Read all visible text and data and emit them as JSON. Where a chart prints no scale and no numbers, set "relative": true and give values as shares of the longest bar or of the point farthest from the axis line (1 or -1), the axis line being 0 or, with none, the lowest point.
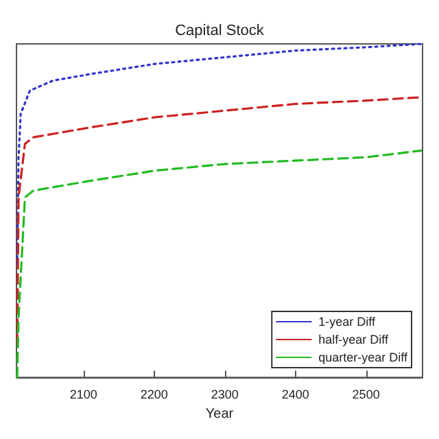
{
  "chart_data": {
    "type": "line",
    "title": "Capital Stock",
    "xlabel": "Year",
    "relative": true,
    "tick_labels": "x",
    "xlim": [
      2005,
      2580
    ],
    "xticks": [
      2100,
      2200,
      2300,
      2400,
      2500
    ],
    "grid": false,
    "legend": "bottom right",
    "marker": "none",
    "series": [
      {
        "name": "1-year Diff",
        "color": "#3333cc",
        "line_style": "dotted",
        "x": [
          2006,
          2008,
          2011,
          2024,
          2057,
          2111,
          2201,
          2301,
          2400,
          2500,
          2578
        ],
        "values": [
          0.34,
          0.66,
          0.79,
          0.86,
          0.89,
          0.91,
          0.94,
          0.96,
          0.98,
          0.99,
          1
        ]
      },
      {
        "name": "half-year Diff",
        "color": "#cc2222",
        "line_style": "dashed",
        "x": [
          2006,
          2008,
          2017,
          2029,
          2111,
          2201,
          2301,
          2400,
          2500,
          2578
        ],
        "values": [
          0.1,
          0.54,
          0.7,
          0.72,
          0.75,
          0.78,
          0.8,
          0.82,
          0.83,
          0.84
        ]
      },
      {
        "name": "quarter-year Diff",
        "color": "#22bb22",
        "line_style": "dashed",
        "x": [
          2006,
          2008,
          2017,
          2029,
          2111,
          2201,
          2301,
          2400,
          2500,
          2578
        ],
        "values": [
          0,
          0.18,
          0.54,
          0.56,
          0.59,
          0.62,
          0.64,
          0.65,
          0.66,
          0.68
        ]
      }
    ]
  }
}
